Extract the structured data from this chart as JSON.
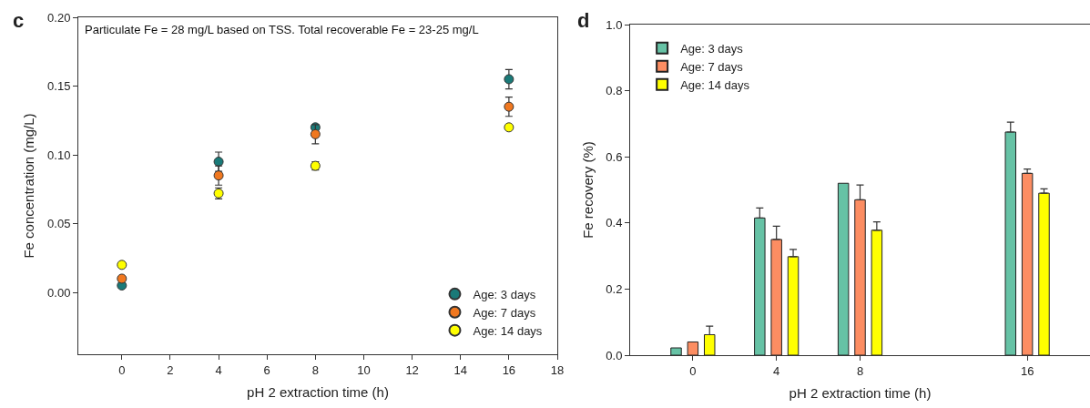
{
  "chart_data": [
    {
      "type": "scatter",
      "xlabel": "pH 2 extraction time (h)",
      "ylabel": "Fe concentration (mg/L)",
      "annotations": [
        "c",
        "Particulate Fe = 28 mg/L based on TSS. Total recoverable Fe = 23-25 mg/L"
      ],
      "x": [
        0,
        4,
        8,
        16
      ],
      "xlim": [
        -1.8,
        18
      ],
      "xticks": [
        0,
        2,
        4,
        6,
        8,
        10,
        12,
        14,
        16,
        18
      ],
      "ylim": [
        -0.045,
        0.2
      ],
      "yticks": [
        {
          "value": 0,
          "label": "0.00"
        },
        {
          "value": 0.05,
          "label": "0.05"
        },
        {
          "value": 0.1,
          "label": "0.10"
        },
        {
          "value": 0.15,
          "label": "0.15"
        },
        {
          "value": 0.2,
          "label": "0.20"
        }
      ],
      "grid": false,
      "legend": "bottom right",
      "marker": "circle",
      "series": [
        {
          "name": "Age: 3 days",
          "color": "#1a7a78",
          "values": [
            0.005,
            0.095,
            0.12,
            0.155
          ],
          "errors": [
            null,
            0.007,
            0.002,
            0.007
          ]
        },
        {
          "name": "Age: 7 days",
          "color": "#f07820",
          "values": [
            0.01,
            0.085,
            0.115,
            0.135
          ],
          "errors": [
            null,
            0.007,
            0.007,
            0.007
          ]
        },
        {
          "name": "Age: 14 days",
          "color": "#ffff00",
          "values": [
            0.02,
            0.072,
            0.092,
            0.12
          ],
          "errors": [
            null,
            0.004,
            0.003,
            null
          ]
        }
      ]
    },
    {
      "type": "bar",
      "xlabel": "pH 2 extraction time (h)",
      "ylabel": "Fe recovery (%)",
      "annotations": [
        "d"
      ],
      "x": [
        0,
        4,
        8,
        16
      ],
      "xlim": [
        -3,
        19
      ],
      "xticks": [
        0,
        4,
        8,
        16
      ],
      "ylim": [
        0,
        1
      ],
      "yticks": [
        {
          "value": 0,
          "label": "0.0"
        },
        {
          "value": 0.2,
          "label": "0.2"
        },
        {
          "value": 0.4,
          "label": "0.4"
        },
        {
          "value": 0.6,
          "label": "0.6"
        },
        {
          "value": 0.8,
          "label": "0.8"
        },
        {
          "value": 1,
          "label": "1.0"
        }
      ],
      "grid": false,
      "legend": "top left",
      "series": [
        {
          "name": "Age: 3 days",
          "color": "#66c2a5",
          "values": [
            0.022,
            0.415,
            0.52,
            0.675
          ],
          "errors": [
            null,
            [
              0.415,
              0.445
            ],
            null,
            [
              0.675,
              0.705
            ]
          ]
        },
        {
          "name": "Age: 7 days",
          "color": "#fc8d62",
          "values": [
            0.04,
            0.35,
            0.47,
            0.55
          ],
          "errors": [
            null,
            [
              0.35,
              0.39
            ],
            [
              0.47,
              0.515
            ],
            [
              0.55,
              0.563
            ]
          ]
        },
        {
          "name": "Age: 14 days",
          "color": "#ffff00",
          "values": [
            0.062,
            0.298,
            0.378,
            0.49
          ],
          "errors": [
            [
              0.062,
              0.088
            ],
            [
              0.298,
              0.32
            ],
            [
              0.378,
              0.403
            ],
            [
              0.49,
              0.503
            ]
          ]
        }
      ]
    }
  ]
}
